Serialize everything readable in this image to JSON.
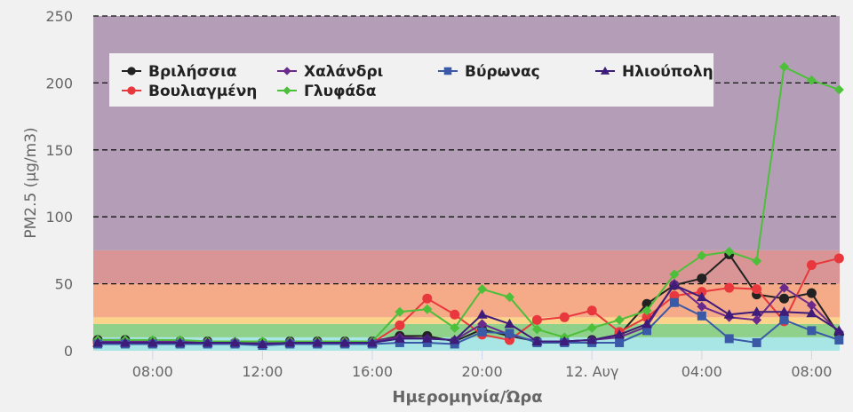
{
  "chart_data": {
    "type": "line",
    "title": "",
    "xlabel": "Ημερομηνία/Ώρα",
    "ylabel": "PM2.5 (μg/m3)",
    "ylim": [
      0,
      250
    ],
    "yticks": [
      0,
      50,
      100,
      150,
      200,
      250
    ],
    "grid": "dashed horizontal",
    "legend_position": "top-left inside",
    "x_tick_labels": [
      {
        "label": "08:00",
        "index": 2
      },
      {
        "label": "12:00",
        "index": 6
      },
      {
        "label": "16:00",
        "index": 10
      },
      {
        "label": "20:00",
        "index": 14
      },
      {
        "label": "12. Αυγ",
        "index": 18
      },
      {
        "label": "04:00",
        "index": 22
      },
      {
        "label": "08:00",
        "index": 26
      }
    ],
    "x": [
      "06:00",
      "07:00",
      "08:00",
      "09:00",
      "10:00",
      "11:00",
      "12:00",
      "13:00",
      "14:00",
      "15:00",
      "16:00",
      "17:00",
      "18:00",
      "19:00",
      "20:00",
      "21:00",
      "22:00",
      "23:00",
      "00:00",
      "01:00",
      "02:00",
      "03:00",
      "04:00",
      "05:00",
      "06:00",
      "07:00",
      "08:00",
      "09:00"
    ],
    "bands": [
      {
        "from": 0,
        "to": 10,
        "color": "#a8e6e6"
      },
      {
        "from": 10,
        "to": 20,
        "color": "#8fd18b"
      },
      {
        "from": 20,
        "to": 25,
        "color": "#fbd48a"
      },
      {
        "from": 25,
        "to": 50,
        "color": "#f5aa88"
      },
      {
        "from": 50,
        "to": 75,
        "color": "#d99595"
      },
      {
        "from": 75,
        "to": 250,
        "color": "#b49eb7"
      }
    ],
    "series": [
      {
        "name": "Βριλήσσια",
        "color": "#222222",
        "marker": "circle",
        "values": [
          8,
          8,
          7,
          7,
          7,
          6,
          6,
          7,
          7,
          7,
          7,
          11,
          11,
          7,
          16,
          11,
          7,
          7,
          8,
          12,
          35,
          49,
          54,
          72,
          42,
          39,
          43,
          12
        ]
      },
      {
        "name": "Βουλιαγμένη",
        "color": "#e8383d",
        "marker": "circle",
        "values": [
          6,
          6,
          6,
          6,
          6,
          6,
          5,
          6,
          6,
          6,
          6,
          19,
          39,
          27,
          12,
          8,
          23,
          25,
          30,
          14,
          25,
          41,
          44,
          47,
          46,
          22,
          64,
          69
        ]
      },
      {
        "name": "Χαλάνδρι",
        "color": "#6a2a8c",
        "marker": "diamond",
        "values": [
          7,
          7,
          7,
          7,
          7,
          6,
          6,
          7,
          7,
          7,
          7,
          10,
          9,
          8,
          20,
          12,
          7,
          7,
          8,
          10,
          18,
          50,
          33,
          25,
          23,
          47,
          34,
          14
        ]
      },
      {
        "name": "Γλυφάδα",
        "color": "#4dbf3a",
        "marker": "diamond",
        "values": [
          8,
          8,
          8,
          8,
          7,
          7,
          7,
          7,
          7,
          7,
          7,
          29,
          31,
          17,
          46,
          40,
          16,
          10,
          17,
          23,
          30,
          57,
          71,
          74,
          67,
          212,
          202,
          195
        ]
      },
      {
        "name": "Βύρωνας",
        "color": "#3a5aa8",
        "marker": "square",
        "values": [
          5,
          5,
          5,
          5,
          5,
          5,
          4,
          5,
          5,
          5,
          5,
          6,
          6,
          5,
          14,
          13,
          6,
          6,
          6,
          6,
          15,
          36,
          26,
          9,
          6,
          23,
          15,
          8
        ]
      },
      {
        "name": "Ηλιούπολη",
        "color": "#3d1c7a",
        "marker": "triangle",
        "values": [
          6,
          6,
          6,
          6,
          6,
          6,
          5,
          6,
          6,
          6,
          6,
          9,
          9,
          8,
          27,
          20,
          7,
          7,
          8,
          12,
          20,
          49,
          40,
          27,
          29,
          29,
          28,
          15
        ]
      }
    ]
  }
}
